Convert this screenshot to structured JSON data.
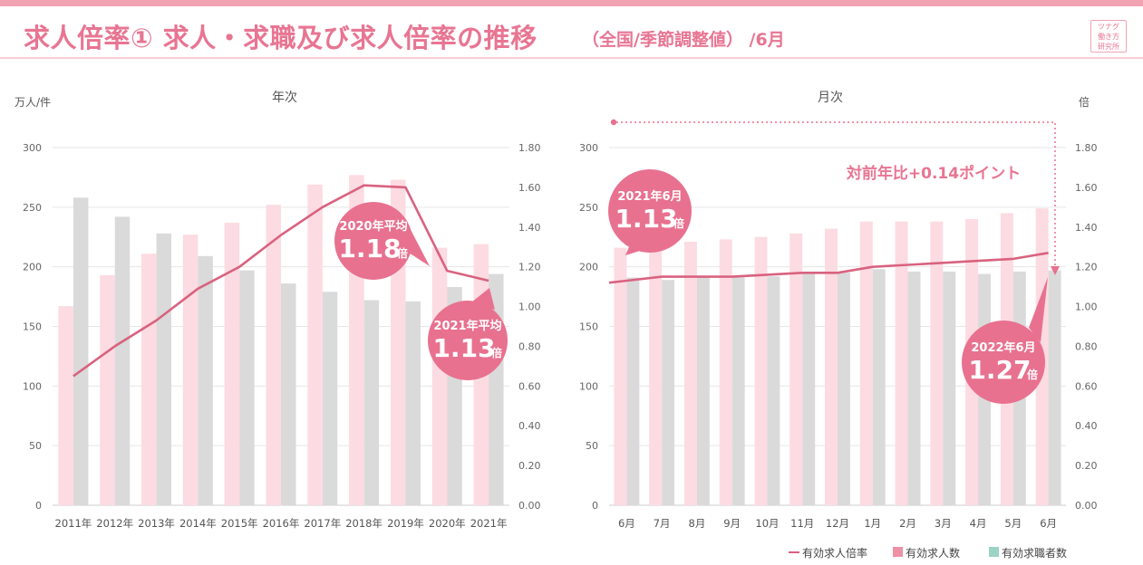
{
  "header": {
    "title": "求人倍率① 求人・求職及び求人倍率の推移",
    "subtitle": "（全国/季節調整値） /6月",
    "logo_text": "ツナグ\n働き方\n研究所"
  },
  "colors": {
    "accent": "#e87592",
    "openings": "#fddbe2",
    "seekers": "#dadada",
    "ratio_line": "#d9627f",
    "bubble": "#e8718f",
    "grid": "#e6e6e6",
    "seekers_legend": "#9bd3c4"
  },
  "legend": {
    "ratio": "有効求人倍率",
    "openings": "有効求人数",
    "seekers": "有効求職者数"
  },
  "chart_data": [
    {
      "type": "bar",
      "title": "年次",
      "ylabel": "万人/件",
      "ylabel_right": "",
      "ylim": [
        0,
        300
      ],
      "y2lim": [
        0,
        1.8
      ],
      "yticks": [
        "0",
        "50",
        "100",
        "150",
        "200",
        "250",
        "300"
      ],
      "y2ticks": [
        "0.00",
        "0.20",
        "0.40",
        "0.60",
        "0.80",
        "1.00",
        "1.20",
        "1.40",
        "1.60",
        "1.80"
      ],
      "categories": [
        "2011年",
        "2012年",
        "2013年",
        "2014年",
        "2015年",
        "2016年",
        "2017年",
        "2018年",
        "2019年",
        "2020年",
        "2021年"
      ],
      "series": [
        {
          "name": "有効求人数",
          "kind": "bar",
          "values": [
            167,
            193,
            211,
            227,
            237,
            252,
            269,
            277,
            273,
            216,
            219
          ]
        },
        {
          "name": "有効求職者数",
          "kind": "bar",
          "values": [
            258,
            242,
            228,
            209,
            197,
            186,
            179,
            172,
            171,
            183,
            194
          ]
        },
        {
          "name": "有効求人倍率",
          "kind": "line",
          "axis": "right",
          "values": [
            0.65,
            0.8,
            0.93,
            1.09,
            1.2,
            1.36,
            1.5,
            1.61,
            1.6,
            1.18,
            1.13
          ]
        }
      ],
      "callouts": [
        {
          "label": "2020年平均",
          "value": "1.18",
          "unit": "倍"
        },
        {
          "label": "2021年平均",
          "value": "1.13",
          "unit": "倍"
        }
      ]
    },
    {
      "type": "bar",
      "title": "月次",
      "ylabel": "",
      "ylabel_right": "倍",
      "ylim": [
        0,
        300
      ],
      "y2lim": [
        0,
        1.8
      ],
      "yticks": [
        "0",
        "50",
        "100",
        "150",
        "200",
        "250",
        "300"
      ],
      "y2ticks": [
        "0.00",
        "0.20",
        "0.40",
        "0.60",
        "0.80",
        "1.00",
        "1.20",
        "1.40",
        "1.60",
        "1.80"
      ],
      "categories": [
        "6月",
        "7月",
        "8月",
        "9月",
        "10月",
        "11月",
        "12月",
        "1月",
        "2月",
        "3月",
        "4月",
        "5月",
        "6月"
      ],
      "series": [
        {
          "name": "有効求人数",
          "kind": "bar",
          "values": [
            216,
            218,
            221,
            223,
            225,
            228,
            232,
            238,
            238,
            238,
            240,
            245,
            249
          ]
        },
        {
          "name": "有効求職者数",
          "kind": "bar",
          "values": [
            191,
            189,
            191,
            191,
            192,
            194,
            195,
            198,
            196,
            196,
            194,
            196,
            197
          ]
        },
        {
          "name": "有効求人倍率",
          "kind": "line",
          "axis": "right",
          "values": [
            1.13,
            1.15,
            1.15,
            1.15,
            1.16,
            1.17,
            1.17,
            1.2,
            1.21,
            1.22,
            1.23,
            1.24,
            1.27
          ]
        }
      ],
      "callouts": [
        {
          "label": "2021年6月",
          "value": "1.13",
          "unit": "倍"
        },
        {
          "label": "2022年6月",
          "value": "1.27",
          "unit": "倍"
        }
      ],
      "annotation": "対前年比+0.14ポイント"
    }
  ]
}
